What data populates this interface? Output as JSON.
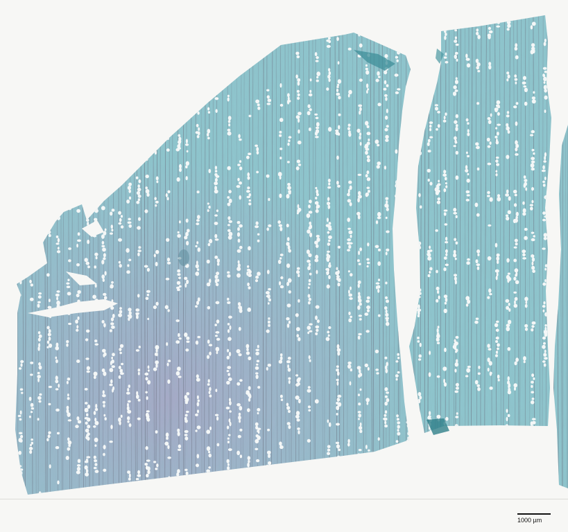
{
  "image": {
    "subject": "wood-cross-section-micrograph",
    "colors": {
      "background": "#f7f7f5",
      "tissue": "#8fc7cf",
      "tissue_dark": "#5ea3ad",
      "stain_purple": "#b48ab8",
      "fibre_line": "#6a6f7e",
      "vessel": "#f4f7f7"
    }
  },
  "scale_bar": {
    "label": "1000 µm"
  }
}
